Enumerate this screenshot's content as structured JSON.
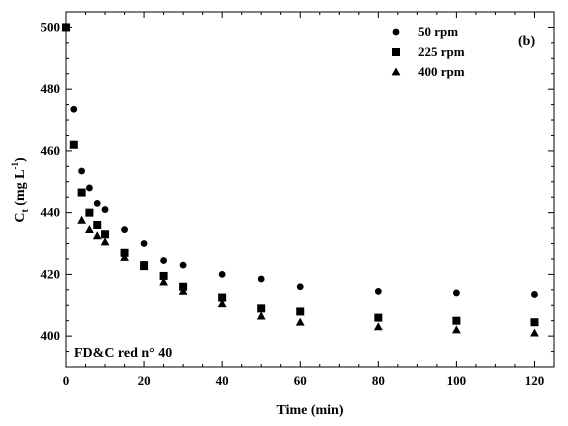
{
  "chart_data": {
    "type": "scatter",
    "xlabel": "Time (min)",
    "ylabel_main": "C",
    "ylabel_sub": "t",
    "ylabel_unit": " (mg L",
    "ylabel_exp": "-1",
    "ylabel_close": ")",
    "xlim": [
      0,
      125
    ],
    "ylim": [
      390,
      505
    ],
    "xticks": [
      0,
      20,
      40,
      60,
      80,
      100,
      120
    ],
    "yticks": [
      400,
      420,
      440,
      460,
      480,
      500
    ],
    "legend_position": "top-right",
    "panel_label": "(b)",
    "annotation": "FD&C red n° 40",
    "grid": false,
    "series": [
      {
        "name": "50 rpm",
        "marker": "circle",
        "x": [
          0,
          2,
          4,
          6,
          8,
          10,
          15,
          20,
          25,
          30,
          40,
          50,
          60,
          80,
          100,
          120
        ],
        "y": [
          500,
          473.5,
          453.5,
          448,
          443,
          441,
          434.5,
          430,
          424.5,
          423,
          420,
          418.5,
          416,
          414.5,
          414,
          413.5
        ]
      },
      {
        "name": "225 rpm",
        "marker": "square",
        "x": [
          0,
          2,
          4,
          6,
          8,
          10,
          15,
          20,
          25,
          30,
          40,
          50,
          60,
          80,
          100,
          120
        ],
        "y": [
          500,
          462,
          446.5,
          440,
          436,
          433,
          427,
          423,
          419.5,
          416,
          412.5,
          409,
          408,
          406,
          405,
          404.5
        ]
      },
      {
        "name": "400 rpm",
        "marker": "triangle",
        "x": [
          0,
          2,
          4,
          6,
          8,
          10,
          15,
          20,
          25,
          30,
          40,
          50,
          60,
          80,
          100,
          120
        ],
        "y": [
          500,
          462,
          437.5,
          434.5,
          432.5,
          430.5,
          425.5,
          422.5,
          417.5,
          414.5,
          410.5,
          406.5,
          404.5,
          403,
          402,
          401
        ]
      }
    ]
  }
}
